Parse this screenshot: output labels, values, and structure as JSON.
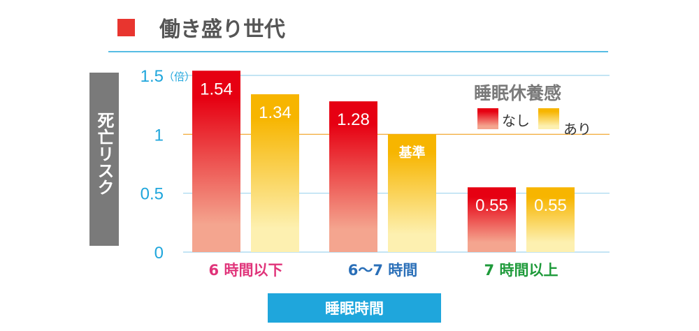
{
  "header": {
    "title": "働き盛り世代",
    "marker_color": "#e8352f",
    "rule_color": "#1fa6dc"
  },
  "chart_data": {
    "type": "bar",
    "title": "働き盛り世代",
    "ylabel": "死亡リスク",
    "yunit": "（倍）",
    "xlabel": "睡眠時間",
    "ylim": [
      0,
      1.6
    ],
    "yticks": [
      {
        "value": 0,
        "label": "0"
      },
      {
        "value": 0.5,
        "label": "0.5"
      },
      {
        "value": 1,
        "label": "1"
      },
      {
        "value": 1.5,
        "label": "1.5"
      }
    ],
    "reference_line": 1,
    "grid": true,
    "categories": [
      "6 時間以下",
      "6〜7 時間",
      "7 時間以上"
    ],
    "category_colors": [
      "#e0347a",
      "#2a6fb8",
      "#1e9a3a"
    ],
    "legend_title": "睡眠休養感",
    "legend_position": "top-right",
    "series": [
      {
        "name": "なし",
        "values": [
          1.54,
          1.28,
          0.55
        ],
        "labels": [
          "1.54",
          "1.28",
          "0.55"
        ],
        "color_top": "#e60012",
        "color_bottom": "#f4a58f"
      },
      {
        "name": "あり",
        "values": [
          1.34,
          1.0,
          0.55
        ],
        "labels": [
          "1.34",
          "基準",
          "0.55"
        ],
        "color_top": "#f7b500",
        "color_bottom": "#fdf0b0"
      }
    ]
  }
}
